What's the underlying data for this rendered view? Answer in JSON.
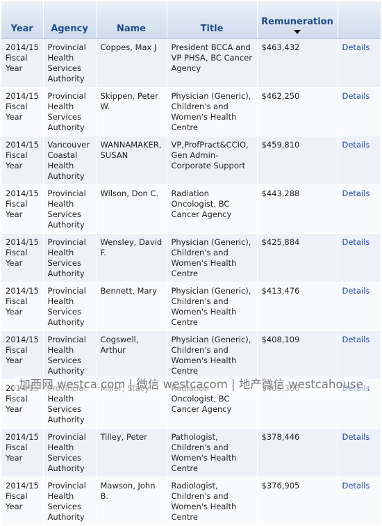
{
  "table": {
    "headers": {
      "year": "Year",
      "agency": "Agency",
      "name": "Name",
      "title": "Title",
      "remuneration": "Remuneration",
      "details": ""
    },
    "rows": [
      {
        "year": "2014/15 Fiscal Year",
        "agency": "Provincial Health Services Authority",
        "name": "Coppes, Max J",
        "title": "President BCCA and VP PHSA, BC Cancer Agency",
        "remuneration": "$463,432",
        "details": "Details"
      },
      {
        "year": "2014/15 Fiscal Year",
        "agency": "Provincial Health Services Authority",
        "name": "Skippen, Peter W.",
        "title": "Physician (Generic), Children's and Women's Health Centre",
        "remuneration": "$462,250",
        "details": "Details"
      },
      {
        "year": "2014/15 Fiscal Year",
        "agency": "Vancouver Coastal Health Authority",
        "name": "WANNAMAKER, SUSAN",
        "title": "VP,ProfPract&CCIO, Gen Admin-Corporate Support",
        "remuneration": "$459,810",
        "details": "Details"
      },
      {
        "year": "2014/15 Fiscal Year",
        "agency": "Provincial Health Services Authority",
        "name": "Wilson, Don C.",
        "title": "Radiation Oncologist, BC Cancer Agency",
        "remuneration": "$443,288",
        "details": "Details"
      },
      {
        "year": "2014/15 Fiscal Year",
        "agency": "Provincial Health Services Authority",
        "name": "Wensley, David F.",
        "title": "Physician (Generic), Children's and Women's Health Centre",
        "remuneration": "$425,884",
        "details": "Details"
      },
      {
        "year": "2014/15 Fiscal Year",
        "agency": "Provincial Health Services Authority",
        "name": "Bennett, Mary",
        "title": "Physician (Generic), Children's and Women's Health Centre",
        "remuneration": "$413,476",
        "details": "Details"
      },
      {
        "year": "2014/15 Fiscal Year",
        "agency": "Provincial Health Services Authority",
        "name": "Cogswell, Arthur",
        "title": "Physician (Generic), Children's and Women's Health Centre",
        "remuneration": "$408,109",
        "details": "Details"
      },
      {
        "year": "2014/15 Fiscal Year",
        "agency": "Provincial Health Services Authority",
        "name": "Miller, Stacy",
        "title": "Radiation Oncologist, BC Cancer Agency",
        "remuneration": "$405,366",
        "details": "Details"
      },
      {
        "year": "2014/15 Fiscal Year",
        "agency": "Provincial Health Services Authority",
        "name": "Tilley, Peter",
        "title": "Pathologist, Children's and Women's Health Centre",
        "remuneration": "$378,446",
        "details": "Details"
      },
      {
        "year": "2014/15 Fiscal Year",
        "agency": "Provincial Health Services Authority",
        "name": "Mawson, John B.",
        "title": "Radiologist, Children's and Women's Health Centre",
        "remuneration": "$376,905",
        "details": "Details"
      }
    ]
  },
  "watermark": "加西网 westca.com | 微信 westcacom | 地产微信 westcahouse",
  "colors": {
    "header_text": "#1f4b8e",
    "link": "#1c48b8",
    "row_odd": "#eef2f8",
    "row_even": "#f9fafc"
  },
  "icons": {
    "sort": "sort-descending-icon"
  }
}
